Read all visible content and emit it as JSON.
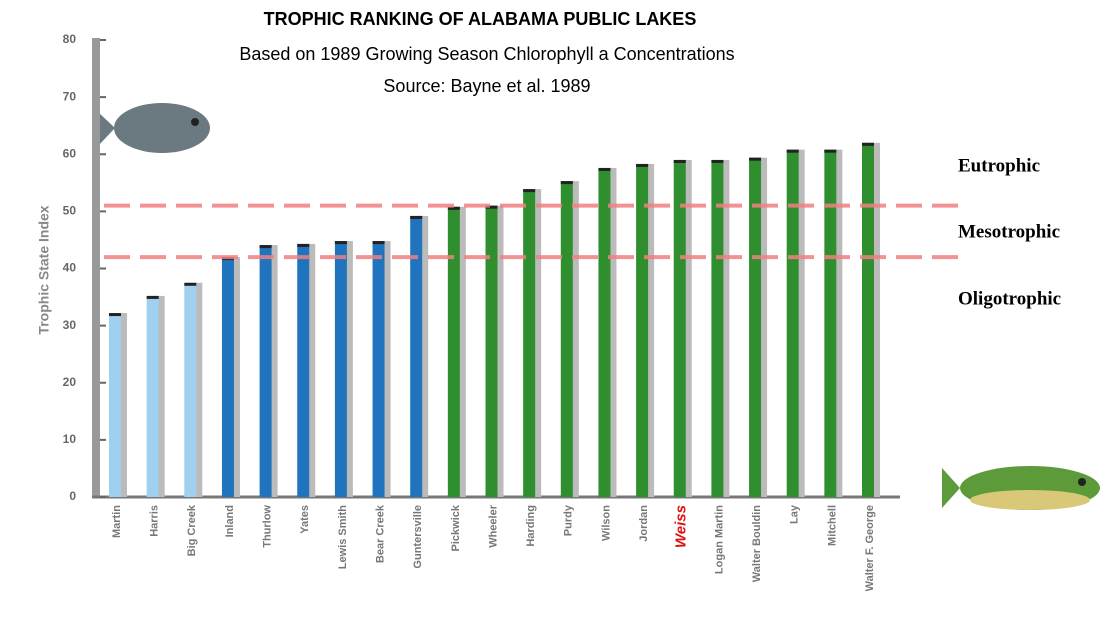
{
  "chart_data": {
    "type": "bar",
    "title": "TROPHIC RANKING OF ALABAMA PUBLIC LAKES",
    "subtitle": "Based on 1989 Growing Season Chlorophyll a Concentrations",
    "source": "Source: Bayne et al. 1989",
    "y_label": "Trophic State Index",
    "categories": [
      "Martin",
      "Harris",
      "Big Creek",
      "Inland",
      "Thurlow",
      "Yates",
      "Lewis Smith",
      "Bear Creek",
      "Guntersville",
      "Pickwick",
      "Wheeler",
      "Harding",
      "Purdy",
      "Wilson",
      "Jordan",
      "Weiss",
      "Logan Martin",
      "Walter Bouldin",
      "Lay",
      "Mitchell",
      "Walter F. George"
    ],
    "values": [
      32.2,
      35.2,
      37.5,
      42,
      44.1,
      44.3,
      44.8,
      44.8,
      49.2,
      50.8,
      51,
      53.9,
      55.3,
      57.6,
      58.3,
      59,
      59,
      59.4,
      60.8,
      60.8,
      62
    ],
    "colors": [
      "#9fd0ef",
      "#9fd0ef",
      "#9fd0ef",
      "#1f74bd",
      "#1f74bd",
      "#1f74bd",
      "#1f74bd",
      "#1f74bd",
      "#1f74bd",
      "#2f8f2f",
      "#2f8f2f",
      "#2f8f2f",
      "#2f8f2f",
      "#2f8f2f",
      "#2f8f2f",
      "#2f8f2f",
      "#2f8f2f",
      "#2f8f2f",
      "#2f8f2f",
      "#2f8f2f",
      "#2f8f2f"
    ],
    "highlight_index": 15,
    "highlight_color": "#e01010",
    "ylim": [
      0,
      80
    ],
    "yticks": [
      0,
      10,
      20,
      30,
      40,
      50,
      60,
      70,
      80
    ],
    "reference_lines": [
      51,
      42
    ],
    "reference_color": "#f08080",
    "zones": [
      "Eutrophic",
      "Mesotrophic",
      "Oligotrophic"
    ]
  }
}
